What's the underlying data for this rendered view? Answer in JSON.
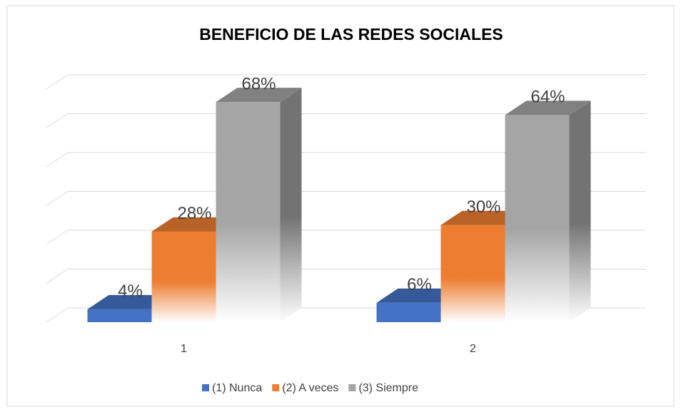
{
  "chart_data": {
    "type": "bar3d",
    "title": "BENEFICIO DE LAS REDES SOCIALES",
    "categories": [
      "1",
      "2"
    ],
    "series": [
      {
        "name": "(1) Nunca",
        "color": "#4472c4",
        "values": [
          4,
          6
        ],
        "value_labels": [
          "4%",
          "6%"
        ]
      },
      {
        "name": "(2) A veces",
        "color": "#ed7d31",
        "values": [
          28,
          30
        ],
        "value_labels": [
          "28%",
          "30%"
        ]
      },
      {
        "name": "(3) Siempre",
        "color": "#a5a5a5",
        "values": [
          68,
          64
        ],
        "value_labels": [
          "68%",
          "64%"
        ]
      }
    ],
    "ylim": [
      0,
      72
    ],
    "yticks": [
      0,
      12,
      24,
      36,
      48,
      60,
      72
    ],
    "grid": true,
    "legend": "bottom"
  }
}
